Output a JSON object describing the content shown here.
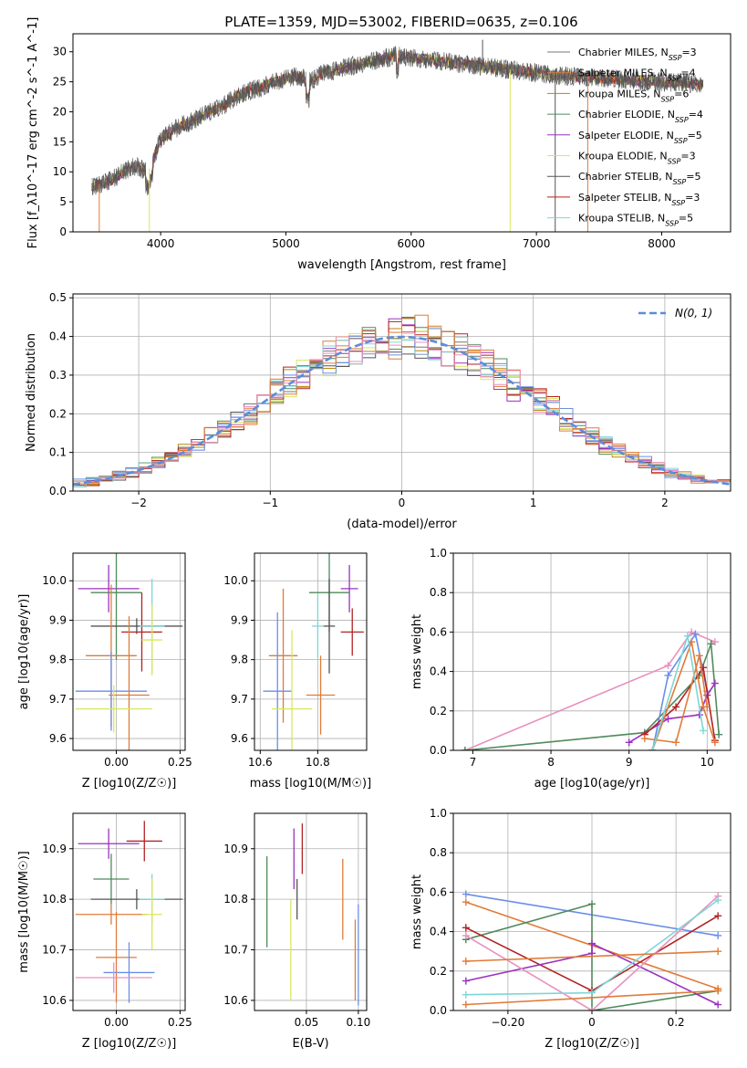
{
  "title": "PLATE=1359, MJD=53002, FIBERID=0635, z=0.106",
  "colors": {
    "series": [
      "#777777",
      "#e07b39",
      "#b8860b",
      "#4f8a5b",
      "#9b30c0",
      "#d8e85a",
      "#555555",
      "#b22222",
      "#7fd6d6"
    ],
    "extra": [
      "#6b8ee8",
      "#e07b39",
      "#e890c0",
      "#cce85a"
    ]
  },
  "chart_data": [
    {
      "id": "spectrum",
      "type": "line",
      "xlabel": "wavelength [Angstrom, rest frame]",
      "ylabel": "Flux [f_λ10^-17 erg cm^-2 s^-1 A^-1]",
      "xlim": [
        3300,
        8550
      ],
      "ylim": [
        0,
        33
      ],
      "xticks": [
        4000,
        5000,
        6000,
        7000,
        8000
      ],
      "yticks": [
        0,
        5,
        10,
        15,
        20,
        25,
        30
      ],
      "legend_position": "upper-right",
      "series": [
        {
          "name": "Chabrier MILES, N_SSP=3"
        },
        {
          "name": "Salpeter MILES, N_SSP=4"
        },
        {
          "name": "Kroupa MILES, N_SSP=6"
        },
        {
          "name": "Chabrier ELODIE, N_SSP=4"
        },
        {
          "name": "Salpeter ELODIE, N_SSP=5"
        },
        {
          "name": "Kroupa ELODIE, N_SSP=3"
        },
        {
          "name": "Chabrier STELIB, N_SSP=5"
        },
        {
          "name": "Salpeter STELIB, N_SSP=3"
        },
        {
          "name": "Kroupa STELIB, N_SSP=5"
        }
      ],
      "continuum": {
        "x": [
          3450,
          3600,
          3700,
          3800,
          3900,
          4000,
          4100,
          4200,
          4300,
          4400,
          4500,
          4600,
          4700,
          4800,
          4900,
          5000,
          5100,
          5200,
          5300,
          5400,
          5500,
          5600,
          5700,
          5800,
          5900,
          6000,
          6200,
          6400,
          6600,
          6800,
          7000,
          7200,
          7400,
          7600,
          7800,
          8000,
          8200,
          8330
        ],
        "y": [
          7.5,
          8.5,
          10,
          11,
          10,
          15.5,
          17,
          18,
          19,
          20,
          21,
          22.5,
          23.5,
          24,
          25,
          25.5,
          26,
          25,
          26.5,
          27,
          27.5,
          28,
          28.5,
          29,
          29.5,
          29,
          28.5,
          28,
          27.5,
          27,
          26.5,
          26,
          25.8,
          25.5,
          25.2,
          25,
          24.8,
          24.5
        ]
      },
      "spikes": [
        {
          "x": 3510,
          "y": 0
        },
        {
          "x": 3910,
          "y": 0
        },
        {
          "x": 6570,
          "y": 32
        },
        {
          "x": 6790,
          "y": 0
        },
        {
          "x": 7150,
          "y": 0
        },
        {
          "x": 7410,
          "y": 0
        }
      ]
    },
    {
      "id": "residuals",
      "type": "step",
      "xlabel": "(data-model)/error",
      "ylabel": "Normed distribution",
      "xlim": [
        -2.5,
        2.5
      ],
      "ylim": [
        0,
        0.51
      ],
      "xticks": [
        -2,
        -1,
        0,
        1,
        2
      ],
      "yticks": [
        0.0,
        0.1,
        0.2,
        0.3,
        0.4,
        0.5
      ],
      "grid": true,
      "legend": "N(0, 1)",
      "legend_position": "upper-right"
    },
    {
      "id": "z-vs-age",
      "type": "errorbar",
      "xlabel": "Z [log10(Z/Z☉)]",
      "ylabel": "age  [log10(age/yr)]",
      "xlim": [
        -0.17,
        0.27
      ],
      "ylim": [
        9.57,
        10.07
      ],
      "xticks": [
        0.0,
        0.25
      ],
      "yticks": [
        9.6,
        9.7,
        9.8,
        9.9,
        10.0
      ],
      "points": [
        {
          "x": -0.03,
          "y": 9.98,
          "xerr": 0.12,
          "yerr": 0.06,
          "c": 4
        },
        {
          "x": 0.0,
          "y": 9.97,
          "xerr": 0.1,
          "yerr": 0.17,
          "c": 3
        },
        {
          "x": 0.08,
          "y": 9.885,
          "xerr": 0.18,
          "yerr": 0.02,
          "c": 6
        },
        {
          "x": 0.1,
          "y": 9.87,
          "xerr": 0.08,
          "yerr": 0.1,
          "c": 7
        },
        {
          "x": 0.14,
          "y": 9.885,
          "xerr": 0.05,
          "yerr": 0.12,
          "c": 8
        },
        {
          "x": -0.02,
          "y": 9.81,
          "xerr": 0.1,
          "yerr": 0.18,
          "c": 1
        },
        {
          "x": 0.14,
          "y": 9.85,
          "xerr": 0.04,
          "yerr": 0.09,
          "c": 5
        },
        {
          "x": -0.02,
          "y": 9.72,
          "xerr": 0.14,
          "yerr": 0.1,
          "c": 9
        },
        {
          "x": 0.05,
          "y": 9.71,
          "xerr": 0.08,
          "yerr": 0.2,
          "c": 10
        },
        {
          "x": -0.01,
          "y": 9.675,
          "xerr": 0.15,
          "yerr": 0.06,
          "c": 5
        }
      ]
    },
    {
      "id": "mass-vs-age",
      "type": "errorbar",
      "xlabel": "mass [log10(M/M☉)]",
      "ylabel": "",
      "xlim": [
        10.58,
        10.97
      ],
      "ylim": [
        9.57,
        10.07
      ],
      "xticks": [
        10.6,
        10.8
      ],
      "yticks": [
        9.6,
        9.7,
        9.8,
        9.9,
        10.0
      ],
      "points": [
        {
          "x": 10.91,
          "y": 9.98,
          "xerr": 0.03,
          "yerr": 0.06,
          "c": 4
        },
        {
          "x": 10.84,
          "y": 9.97,
          "xerr": 0.07,
          "yerr": 0.1,
          "c": 3
        },
        {
          "x": 10.84,
          "y": 9.885,
          "xerr": 0.02,
          "yerr": 0.12,
          "c": 6
        },
        {
          "x": 10.92,
          "y": 9.87,
          "xerr": 0.04,
          "yerr": 0.06,
          "c": 7
        },
        {
          "x": 10.8,
          "y": 9.885,
          "xerr": 0.02,
          "yerr": 0.08,
          "c": 8
        },
        {
          "x": 10.68,
          "y": 9.81,
          "xerr": 0.05,
          "yerr": 0.17,
          "c": 1
        },
        {
          "x": 10.66,
          "y": 9.72,
          "xerr": 0.05,
          "yerr": 0.2,
          "c": 9
        },
        {
          "x": 10.81,
          "y": 9.71,
          "xerr": 0.05,
          "yerr": 0.1,
          "c": 10
        },
        {
          "x": 10.71,
          "y": 9.675,
          "xerr": 0.07,
          "yerr": 0.2,
          "c": 5
        }
      ]
    },
    {
      "id": "age-weights",
      "type": "line",
      "xlabel": "age  [log10(age/yr)]",
      "ylabel": "mass weight",
      "xlim": [
        6.75,
        10.3
      ],
      "ylim": [
        0,
        1.0
      ],
      "xticks": [
        7,
        8,
        9,
        10
      ],
      "yticks": [
        0.0,
        0.2,
        0.4,
        0.6,
        0.8,
        1.0
      ],
      "grid": true,
      "series": [
        {
          "x": [
            6.9,
            9.5,
            9.8,
            10.1
          ],
          "y": [
            0.0,
            0.43,
            0.6,
            0.55
          ],
          "c": 11
        },
        {
          "x": [
            6.9,
            9.2,
            9.9,
            10.05,
            10.15
          ],
          "y": [
            0.0,
            0.09,
            0.38,
            0.54,
            0.08
          ],
          "c": 3
        },
        {
          "x": [
            9.3,
            9.5,
            9.85,
            10.0
          ],
          "y": [
            0.0,
            0.38,
            0.59,
            0.3
          ],
          "c": 9
        },
        {
          "x": [
            9.0,
            9.5,
            9.9,
            10.0,
            10.1
          ],
          "y": [
            0.04,
            0.16,
            0.18,
            0.28,
            0.34
          ],
          "c": 4
        },
        {
          "x": [
            9.2,
            9.6,
            9.95,
            10.1
          ],
          "y": [
            0.08,
            0.22,
            0.42,
            0.05
          ],
          "c": 7
        },
        {
          "x": [
            9.2,
            9.6,
            9.9,
            10.0
          ],
          "y": [
            0.06,
            0.04,
            0.48,
            0.22
          ],
          "c": 1
        },
        {
          "x": [
            9.3,
            9.8,
            9.95,
            10.1
          ],
          "y": [
            0.0,
            0.55,
            0.22,
            0.04
          ],
          "c": 10
        },
        {
          "x": [
            9.3,
            9.75,
            9.95
          ],
          "y": [
            0.0,
            0.58,
            0.1
          ],
          "c": 8
        }
      ]
    },
    {
      "id": "z-vs-mass",
      "type": "errorbar",
      "xlabel": "Z [log10(Z/Z☉)]",
      "ylabel": "mass [log10(M/M☉)]",
      "xlim": [
        -0.17,
        0.27
      ],
      "ylim": [
        10.58,
        10.97
      ],
      "xticks": [
        0.0,
        0.25
      ],
      "yticks": [
        10.6,
        10.7,
        10.8,
        10.9
      ],
      "points": [
        {
          "x": 0.11,
          "y": 10.915,
          "xerr": 0.07,
          "yerr": 0.04,
          "c": 7
        },
        {
          "x": -0.03,
          "y": 10.91,
          "xerr": 0.12,
          "yerr": 0.03,
          "c": 4
        },
        {
          "x": -0.02,
          "y": 10.84,
          "xerr": 0.07,
          "yerr": 0.05,
          "c": 3
        },
        {
          "x": 0.08,
          "y": 10.8,
          "xerr": 0.18,
          "yerr": 0.02,
          "c": 6
        },
        {
          "x": 0.14,
          "y": 10.8,
          "xerr": 0.05,
          "yerr": 0.05,
          "c": 8
        },
        {
          "x": -0.02,
          "y": 10.77,
          "xerr": 0.14,
          "yerr": 0.02,
          "c": 10
        },
        {
          "x": 0.14,
          "y": 10.77,
          "xerr": 0.04,
          "yerr": 0.07,
          "c": 5
        },
        {
          "x": 0.0,
          "y": 10.685,
          "xerr": 0.08,
          "yerr": 0.09,
          "c": 1
        },
        {
          "x": 0.05,
          "y": 10.655,
          "xerr": 0.1,
          "yerr": 0.06,
          "c": 9
        },
        {
          "x": -0.01,
          "y": 10.645,
          "xerr": 0.15,
          "yerr": 0.03,
          "c": 11
        }
      ]
    },
    {
      "id": "ebv-vs-mass",
      "type": "errorbar",
      "xlabel": "E(B-V)",
      "ylabel": "",
      "xlim": [
        0.0,
        0.108
      ],
      "ylim": [
        10.58,
        10.97
      ],
      "xticks": [
        0.05,
        0.1
      ],
      "yticks": [
        10.6,
        10.7,
        10.8,
        10.9
      ],
      "points": [
        {
          "x": 0.012,
          "y": 10.795,
          "xerr": 0.0,
          "yerr": 0.09,
          "c": 3
        },
        {
          "x": 0.035,
          "y": 10.7,
          "xerr": 0.0,
          "yerr": 0.1,
          "c": 5
        },
        {
          "x": 0.038,
          "y": 10.88,
          "xerr": 0.0,
          "yerr": 0.06,
          "c": 4
        },
        {
          "x": 0.041,
          "y": 10.8,
          "xerr": 0.0,
          "yerr": 0.04,
          "c": 6
        },
        {
          "x": 0.046,
          "y": 10.9,
          "xerr": 0.0,
          "yerr": 0.05,
          "c": 7
        },
        {
          "x": 0.085,
          "y": 10.8,
          "xerr": 0.0,
          "yerr": 0.08,
          "c": 10
        },
        {
          "x": 0.097,
          "y": 10.68,
          "xerr": 0.0,
          "yerr": 0.08,
          "c": 1
        },
        {
          "x": 0.1,
          "y": 10.69,
          "xerr": 0.0,
          "yerr": 0.1,
          "c": 9
        }
      ]
    },
    {
      "id": "z-weights",
      "type": "line",
      "xlabel": "Z [log10(Z/Z☉)]",
      "ylabel": "mass weight",
      "xlim": [
        -0.33,
        0.33
      ],
      "ylim": [
        0,
        1.0
      ],
      "xticks": [
        -0.2,
        0.0,
        0.2
      ],
      "yticks": [
        0.0,
        0.2,
        0.4,
        0.6,
        0.8,
        1.0
      ],
      "grid": true,
      "series": [
        {
          "x": [
            -0.3,
            0.3
          ],
          "y": [
            0.59,
            0.38
          ],
          "c": 9
        },
        {
          "x": [
            -0.3,
            0.3
          ],
          "y": [
            0.55,
            0.11
          ],
          "c": 10
        },
        {
          "x": [
            -0.3,
            0.0,
            0.0,
            0.3
          ],
          "y": [
            0.36,
            0.54,
            0.0,
            0.1
          ],
          "c": 3
        },
        {
          "x": [
            -0.3,
            0.0,
            0.3
          ],
          "y": [
            0.42,
            0.1,
            0.48
          ],
          "c": 7
        },
        {
          "x": [
            -0.3,
            0.0,
            0.0,
            0.3
          ],
          "y": [
            0.15,
            0.29,
            0.34,
            0.03
          ],
          "c": 4
        },
        {
          "x": [
            -0.3,
            0.0,
            0.3
          ],
          "y": [
            0.38,
            0.0,
            0.58
          ],
          "c": 11
        },
        {
          "x": [
            -0.3,
            0.0,
            0.3
          ],
          "y": [
            0.08,
            0.09,
            0.56
          ],
          "c": 8
        },
        {
          "x": [
            -0.3,
            0.3
          ],
          "y": [
            0.03,
            0.1
          ],
          "c": 1
        },
        {
          "x": [
            -0.3,
            0.3
          ],
          "y": [
            0.25,
            0.3
          ],
          "c": 1
        }
      ]
    }
  ]
}
